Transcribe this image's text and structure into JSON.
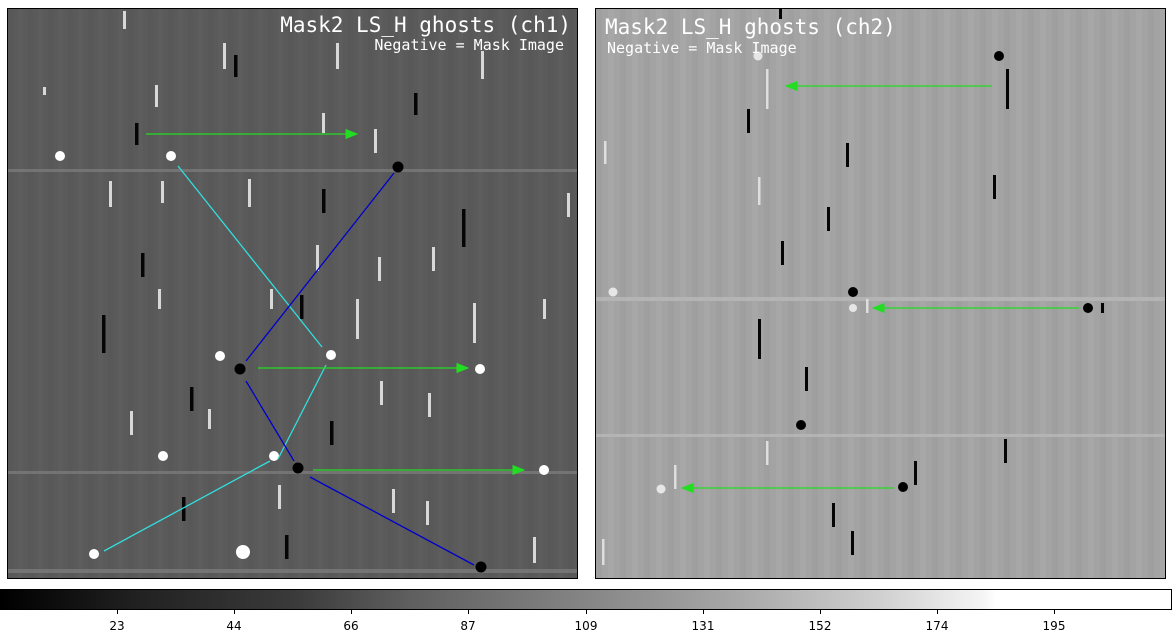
{
  "panels": [
    {
      "title": "Mask2 LS_H ghosts (ch1)",
      "subtitle": "Negative = Mask Image"
    },
    {
      "title": "Mask2 LS_H ghosts (ch2)",
      "subtitle": "Negative = Mask Image"
    }
  ],
  "colorbar": {
    "ticks": [
      "23",
      "44",
      "66",
      "87",
      "109",
      "131",
      "152",
      "174",
      "195"
    ]
  },
  "colors": {
    "arrow": "#22dd22",
    "line_cyan": "#33dddd",
    "line_blue": "#0000cc"
  }
}
